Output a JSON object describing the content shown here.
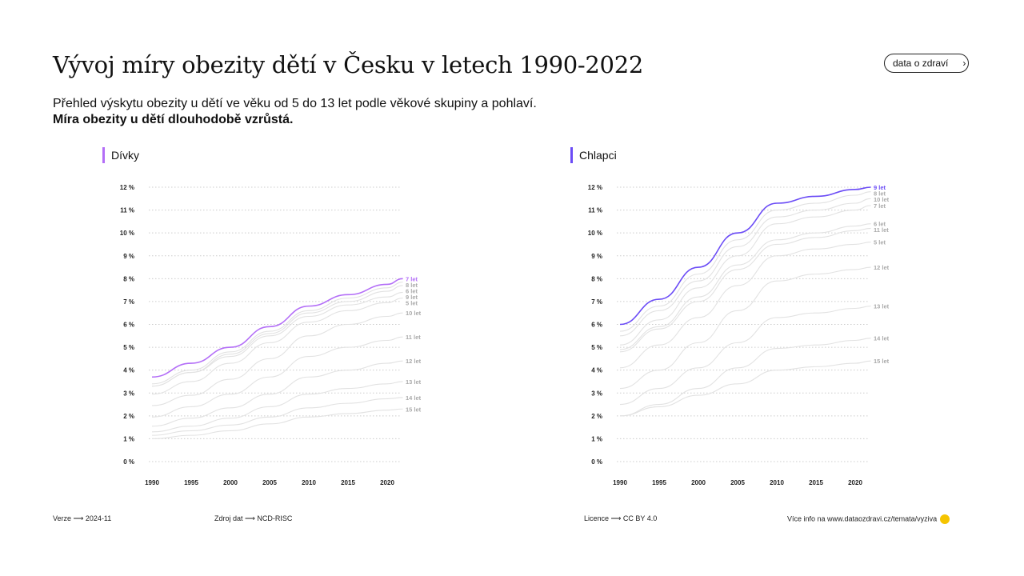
{
  "title": "Vývoj míry obezity dětí v Česku v letech 1990-2022",
  "subtitle": "Přehled výskytu obezity u dětí ve věku od 5 do 13 let podle věkové skupiny a pohlaví.",
  "subtitle_bold": "Míra obezity u dětí dlouhodobě vzrůstá.",
  "button": "data o zdraví",
  "footer": {
    "version": "Verze ⟶ 2024-11",
    "source": "Zdroj dat ⟶ NCD-RISC",
    "licence": "Licence ⟶ CC BY 4.0",
    "more": "Více info na www.dataozdravi.cz/temata/vyziva"
  },
  "chart_data": [
    {
      "type": "line",
      "title": "Dívky",
      "accent": "#b36ef7",
      "highlight": "7 let",
      "x": [
        1990,
        1995,
        2000,
        2005,
        2010,
        2015,
        2020,
        2022
      ],
      "xticks": [
        "1990",
        "1995",
        "2000",
        "2005",
        "2010",
        "2015",
        "2020"
      ],
      "yticks": [
        "0 %",
        "1 %",
        "2 %",
        "3 %",
        "4 %",
        "5 %",
        "6 %",
        "7 %",
        "8 %",
        "9 %",
        "10 %",
        "11 %",
        "12 %"
      ],
      "ylim": [
        0,
        12
      ],
      "series": [
        {
          "name": "7 let",
          "values": [
            3.7,
            4.3,
            5.0,
            5.9,
            6.8,
            7.3,
            7.75,
            8.0
          ]
        },
        {
          "name": "8 let",
          "values": [
            3.4,
            4.0,
            4.8,
            5.7,
            6.6,
            7.15,
            7.6,
            7.85
          ]
        },
        {
          "name": "6 let",
          "values": [
            3.3,
            3.9,
            4.7,
            5.6,
            6.5,
            7.0,
            7.45,
            7.7
          ]
        },
        {
          "name": "9 let",
          "values": [
            3.3,
            3.9,
            4.6,
            5.5,
            6.35,
            6.85,
            7.2,
            7.4
          ]
        },
        {
          "name": "5 let",
          "values": [
            2.95,
            3.5,
            4.3,
            5.2,
            6.1,
            6.6,
            6.95,
            7.15
          ]
        },
        {
          "name": "10 let",
          "values": [
            2.45,
            2.9,
            3.6,
            4.5,
            5.5,
            6.0,
            6.35,
            6.5
          ]
        },
        {
          "name": "11 let",
          "values": [
            1.95,
            2.4,
            2.95,
            3.7,
            4.6,
            5.0,
            5.3,
            5.45
          ]
        },
        {
          "name": "12 let",
          "values": [
            1.55,
            1.9,
            2.35,
            2.95,
            3.7,
            4.0,
            4.3,
            4.4
          ]
        },
        {
          "name": "13 let",
          "values": [
            1.3,
            1.55,
            1.9,
            2.4,
            2.95,
            3.2,
            3.4,
            3.5
          ]
        },
        {
          "name": "14 let",
          "values": [
            1.15,
            1.35,
            1.6,
            1.95,
            2.35,
            2.55,
            2.75,
            2.8
          ]
        },
        {
          "name": "15 let",
          "values": [
            1.0,
            1.15,
            1.35,
            1.65,
            1.95,
            2.1,
            2.25,
            2.3
          ]
        }
      ]
    },
    {
      "type": "line",
      "title": "Chlapci",
      "accent": "#6b4cf6",
      "highlight": "9 let",
      "x": [
        1990,
        1995,
        2000,
        2005,
        2010,
        2015,
        2020,
        2022
      ],
      "xticks": [
        "1990",
        "1995",
        "2000",
        "2005",
        "2010",
        "2015",
        "2020"
      ],
      "yticks": [
        "0 %",
        "1 %",
        "2 %",
        "3 %",
        "4 %",
        "5 %",
        "6 %",
        "7 %",
        "8 %",
        "9 %",
        "10 %",
        "11 %",
        "12 %"
      ],
      "ylim": [
        0,
        12
      ],
      "series": [
        {
          "name": "9 let",
          "values": [
            6.0,
            7.1,
            8.5,
            10.0,
            11.3,
            11.6,
            11.9,
            12.0
          ]
        },
        {
          "name": "8 let",
          "values": [
            5.7,
            6.8,
            8.2,
            9.7,
            11.0,
            11.3,
            11.65,
            11.8
          ]
        },
        {
          "name": "10 let",
          "values": [
            5.5,
            6.6,
            7.9,
            9.4,
            10.7,
            11.0,
            11.3,
            11.5
          ]
        },
        {
          "name": "7 let",
          "values": [
            5.1,
            6.2,
            7.6,
            9.0,
            10.4,
            10.7,
            11.0,
            11.2
          ]
        },
        {
          "name": "6 let",
          "values": [
            4.9,
            5.9,
            7.2,
            8.6,
            9.7,
            10.0,
            10.3,
            10.4
          ]
        },
        {
          "name": "11 let",
          "values": [
            4.8,
            5.8,
            7.0,
            8.4,
            9.5,
            9.8,
            10.1,
            10.2
          ]
        },
        {
          "name": "5 let",
          "values": [
            4.1,
            5.1,
            6.3,
            7.7,
            9.0,
            9.3,
            9.5,
            9.6
          ]
        },
        {
          "name": "12 let",
          "values": [
            3.2,
            4.0,
            5.2,
            6.6,
            7.9,
            8.2,
            8.4,
            8.5
          ]
        },
        {
          "name": "13 let",
          "values": [
            2.5,
            3.2,
            4.1,
            5.2,
            6.3,
            6.5,
            6.7,
            6.8
          ]
        },
        {
          "name": "14 let",
          "values": [
            2.0,
            2.5,
            3.2,
            4.1,
            4.95,
            5.1,
            5.3,
            5.4
          ]
        },
        {
          "name": "15 let",
          "values": [
            2.0,
            2.4,
            2.9,
            3.4,
            4.0,
            4.15,
            4.3,
            4.4
          ]
        }
      ]
    }
  ]
}
